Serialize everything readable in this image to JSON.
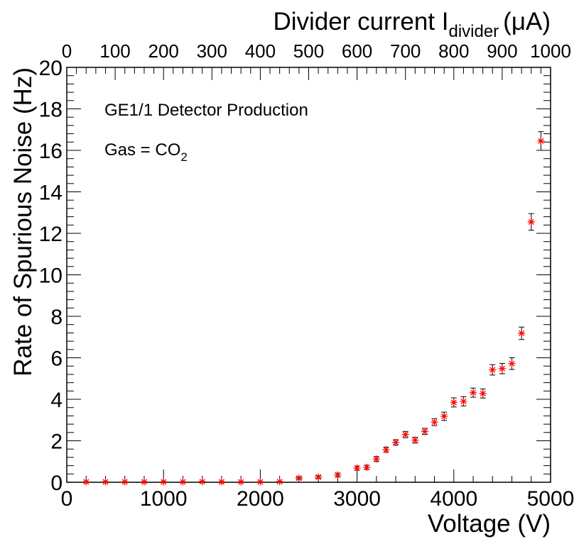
{
  "chart_data": {
    "type": "scatter",
    "ylabel": "Rate of Spurious Noise (Hz)",
    "xlabel": "Voltage (V)",
    "top_axis": {
      "label_main": "Divider current I",
      "label_sub": "divider",
      "label_unit": "(μA)",
      "range": [
        0,
        1000
      ],
      "ticks": [
        0,
        100,
        200,
        300,
        400,
        500,
        600,
        700,
        800,
        900,
        1000
      ]
    },
    "xlim": [
      0,
      5000
    ],
    "ylim": [
      0,
      20
    ],
    "x_ticks": [
      0,
      1000,
      2000,
      3000,
      4000,
      5000
    ],
    "y_ticks": [
      0,
      2,
      4,
      6,
      8,
      10,
      12,
      14,
      16,
      18,
      20
    ],
    "annotations": {
      "line1": "GE1/1 Detector Production",
      "gas_prefix": "Gas = CO",
      "gas_sub": "2"
    },
    "marker_color": "#ff0000",
    "errorbar_color": "#000000",
    "points": [
      {
        "x": 200,
        "y": 0.02,
        "err": 0.01
      },
      {
        "x": 400,
        "y": 0.02,
        "err": 0.01
      },
      {
        "x": 600,
        "y": 0.02,
        "err": 0.01
      },
      {
        "x": 800,
        "y": 0.02,
        "err": 0.01
      },
      {
        "x": 1000,
        "y": 0.02,
        "err": 0.01
      },
      {
        "x": 1200,
        "y": 0.02,
        "err": 0.01
      },
      {
        "x": 1400,
        "y": 0.03,
        "err": 0.01
      },
      {
        "x": 1600,
        "y": 0.02,
        "err": 0.01
      },
      {
        "x": 1800,
        "y": 0.02,
        "err": 0.01
      },
      {
        "x": 2000,
        "y": 0.02,
        "err": 0.01
      },
      {
        "x": 2200,
        "y": 0.03,
        "err": 0.01
      },
      {
        "x": 2400,
        "y": 0.2,
        "err": 0.06
      },
      {
        "x": 2600,
        "y": 0.25,
        "err": 0.07
      },
      {
        "x": 2800,
        "y": 0.35,
        "err": 0.09
      },
      {
        "x": 3000,
        "y": 0.68,
        "err": 0.1
      },
      {
        "x": 3100,
        "y": 0.72,
        "err": 0.1
      },
      {
        "x": 3200,
        "y": 1.12,
        "err": 0.12
      },
      {
        "x": 3300,
        "y": 1.57,
        "err": 0.12
      },
      {
        "x": 3400,
        "y": 1.92,
        "err": 0.13
      },
      {
        "x": 3500,
        "y": 2.3,
        "err": 0.15
      },
      {
        "x": 3600,
        "y": 2.03,
        "err": 0.14
      },
      {
        "x": 3700,
        "y": 2.45,
        "err": 0.15
      },
      {
        "x": 3800,
        "y": 2.9,
        "err": 0.17
      },
      {
        "x": 3900,
        "y": 3.18,
        "err": 0.2
      },
      {
        "x": 4000,
        "y": 3.85,
        "err": 0.22
      },
      {
        "x": 4100,
        "y": 3.9,
        "err": 0.22
      },
      {
        "x": 4200,
        "y": 4.32,
        "err": 0.22
      },
      {
        "x": 4300,
        "y": 4.28,
        "err": 0.22
      },
      {
        "x": 4400,
        "y": 5.42,
        "err": 0.25
      },
      {
        "x": 4500,
        "y": 5.48,
        "err": 0.25
      },
      {
        "x": 4600,
        "y": 5.72,
        "err": 0.28
      },
      {
        "x": 4700,
        "y": 7.18,
        "err": 0.3
      },
      {
        "x": 4800,
        "y": 12.55,
        "err": 0.4
      },
      {
        "x": 4900,
        "y": 16.45,
        "err": 0.45
      }
    ]
  }
}
